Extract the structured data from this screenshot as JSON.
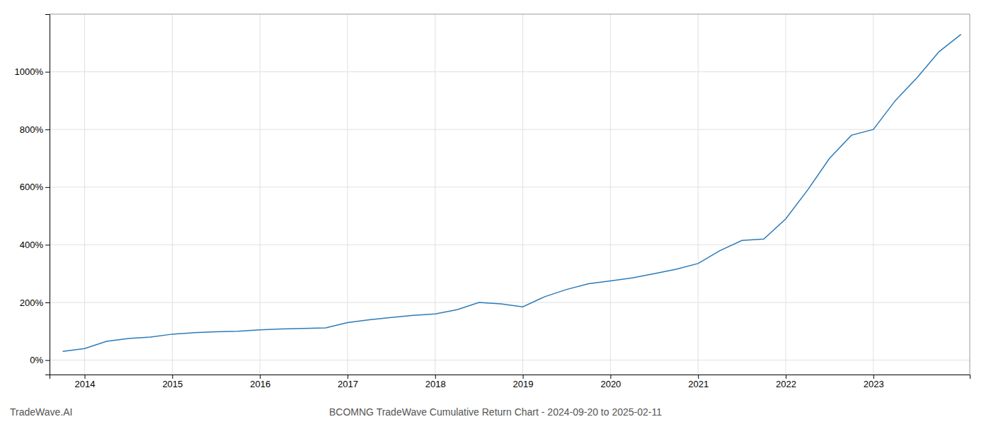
{
  "chart_data": {
    "type": "line",
    "title": "BCOMNG TradeWave Cumulative Return Chart - 2024-09-20 to 2025-02-11",
    "annotations": [
      "TradeWave.AI"
    ],
    "x": [
      2013.75,
      2014.0,
      2014.25,
      2014.5,
      2014.75,
      2015.0,
      2015.25,
      2015.5,
      2015.75,
      2016.0,
      2016.25,
      2016.5,
      2016.75,
      2017.0,
      2017.25,
      2017.5,
      2017.75,
      2018.0,
      2018.25,
      2018.5,
      2018.75,
      2019.0,
      2019.25,
      2019.5,
      2019.75,
      2020.0,
      2020.25,
      2020.5,
      2020.75,
      2021.0,
      2021.25,
      2021.5,
      2021.75,
      2022.0,
      2022.25,
      2022.5,
      2022.75,
      2023.0,
      2023.25,
      2023.5,
      2023.75,
      2024.0
    ],
    "values": [
      30,
      40,
      65,
      75,
      80,
      90,
      95,
      98,
      100,
      105,
      108,
      110,
      112,
      130,
      140,
      148,
      155,
      160,
      175,
      200,
      195,
      185,
      220,
      245,
      265,
      275,
      285,
      300,
      315,
      335,
      380,
      415,
      420,
      490,
      590,
      700,
      780,
      800,
      900,
      980,
      1070,
      1130
    ],
    "color": "#2b7bba",
    "xlim": [
      2013.6,
      2024.1
    ],
    "xticks": [
      2014,
      2015,
      2016,
      2017,
      2018,
      2019,
      2020,
      2021,
      2022,
      2023
    ],
    "ylim": [
      -50,
      1200
    ],
    "yticks": [
      {
        "value": 0,
        "label": "0%"
      },
      {
        "value": 200,
        "label": "200%"
      },
      {
        "value": 400,
        "label": "400%"
      },
      {
        "value": 600,
        "label": "600%"
      },
      {
        "value": 800,
        "label": "800%"
      },
      {
        "value": 1000,
        "label": "1000%"
      }
    ],
    "grid": true
  }
}
